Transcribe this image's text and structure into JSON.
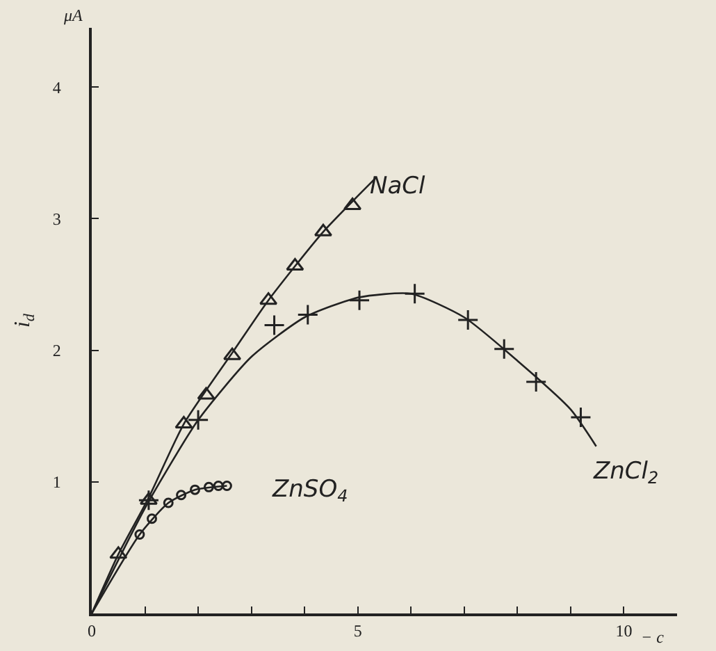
{
  "chart_data": {
    "type": "scatter",
    "xlabel": "− c",
    "ylabel": "i$_{d}$",
    "annotations": [
      "μA"
    ],
    "xlim": [
      0,
      11
    ],
    "ylim": [
      0,
      4.45
    ],
    "xticks": [
      0,
      {
        "value": 1,
        "label": null
      },
      {
        "value": 2,
        "label": null
      },
      {
        "value": 3,
        "label": null
      },
      {
        "value": 4,
        "label": null
      },
      5,
      {
        "value": 6,
        "label": null
      },
      {
        "value": 7,
        "label": null
      },
      {
        "value": 8,
        "label": null
      },
      {
        "value": 9,
        "label": null
      },
      10
    ],
    "yticks": [
      1,
      2,
      3,
      4
    ],
    "grid": false,
    "legend": false,
    "series": [
      {
        "type": "line",
        "color": "#222222",
        "marker": "none",
        "x": [
          0,
          0.5,
          1.07,
          1.73,
          2.64,
          3.32,
          4.35,
          5.34
        ],
        "values": [
          0,
          0.45,
          0.88,
          1.44,
          1.98,
          2.38,
          2.9,
          3.31
        ]
      },
      {
        "type": "line",
        "color": "#222222",
        "marker": "none",
        "x": [
          0,
          1,
          2,
          3,
          4,
          5,
          6,
          7,
          8,
          9,
          9.48
        ],
        "values": [
          0,
          0.8,
          1.47,
          1.95,
          2.25,
          2.4,
          2.43,
          2.25,
          1.92,
          1.55,
          1.27
        ]
      },
      {
        "type": "line",
        "color": "#222222",
        "marker": "none",
        "x": [
          0,
          0.9,
          1.44,
          1.94,
          2.54
        ],
        "values": [
          0,
          0.6,
          0.84,
          0.94,
          0.97
        ]
      },
      {
        "name": "NaCl",
        "color": "#222222",
        "marker": "triangle",
        "x": [
          0.5,
          1.07,
          1.73,
          2.15,
          2.64,
          3.32,
          3.82,
          4.35,
          4.9
        ],
        "values": [
          0.45,
          0.86,
          1.44,
          1.66,
          1.96,
          2.38,
          2.64,
          2.9,
          3.1
        ]
      },
      {
        "name": "ZnCl$_{2}$",
        "color": "#222222",
        "marker": "cross",
        "x": [
          1.07,
          2.0,
          3.43,
          4.06,
          5.03,
          6.07,
          7.07,
          7.75,
          8.35,
          9.19
        ],
        "values": [
          0.86,
          1.47,
          2.19,
          2.27,
          2.38,
          2.43,
          2.23,
          2.01,
          1.76,
          1.49
        ]
      },
      {
        "name": "ZnSO$_{4}$",
        "color": "#222222",
        "marker": "circle",
        "x": [
          0.9,
          1.13,
          1.44,
          1.68,
          1.94,
          2.2,
          2.38,
          2.54
        ],
        "values": [
          0.6,
          0.72,
          0.84,
          0.9,
          0.94,
          0.96,
          0.97,
          0.97
        ]
      }
    ]
  }
}
